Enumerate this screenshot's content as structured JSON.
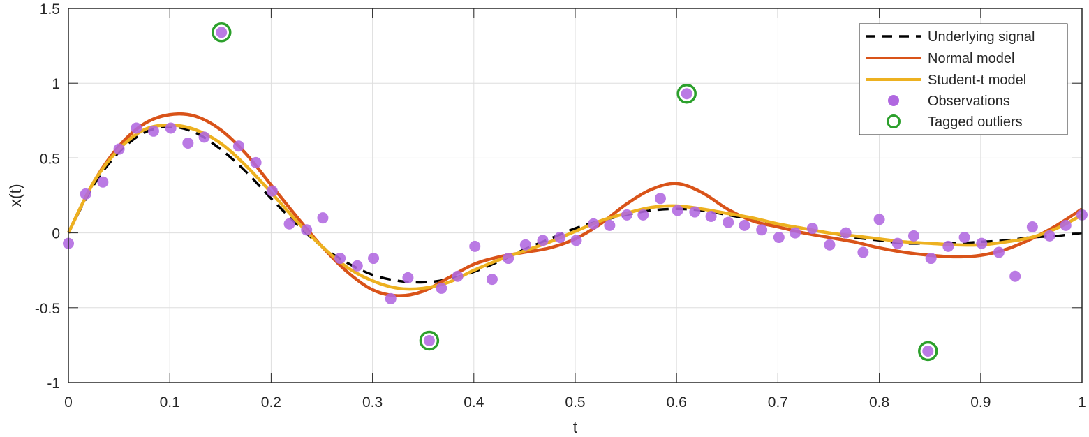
{
  "chart_data": {
    "type": "line",
    "title": "",
    "xlabel": "t",
    "ylabel": "x(t)",
    "xlim": [
      0,
      1
    ],
    "ylim": [
      -1,
      1.5
    ],
    "grid": true,
    "legend_position": "northeast",
    "xticks": [
      0,
      0.1,
      0.2,
      0.3,
      0.4,
      0.5,
      0.6,
      0.7,
      0.8,
      0.9,
      1
    ],
    "xtick_labels": [
      "0",
      "0.1",
      "0.2",
      "0.3",
      "0.4",
      "0.5",
      "0.6",
      "0.7",
      "0.8",
      "0.9",
      "1"
    ],
    "yticks": [
      -1,
      -0.5,
      0,
      0.5,
      1,
      1.5
    ],
    "ytick_labels": [
      "-1",
      "-0.5",
      "0",
      "0.5",
      "1",
      "1.5"
    ],
    "legend": [
      {
        "label": "Underlying signal",
        "style": "dashed-line",
        "color": "#000000"
      },
      {
        "label": "Normal model",
        "style": "line",
        "color": "#D95319"
      },
      {
        "label": "Student-t model",
        "style": "line",
        "color": "#EDB120"
      },
      {
        "label": "Observations",
        "style": "filled-circle",
        "color": "#B068E0"
      },
      {
        "label": "Tagged outliers",
        "style": "open-circle",
        "color": "#2CA02C"
      }
    ],
    "series": [
      {
        "name": "Underlying signal",
        "color": "#000000",
        "dash": true,
        "x": [
          0,
          0.025,
          0.05,
          0.075,
          0.1,
          0.125,
          0.15,
          0.175,
          0.2,
          0.225,
          0.25,
          0.275,
          0.3,
          0.325,
          0.35,
          0.375,
          0.4,
          0.425,
          0.45,
          0.475,
          0.5,
          0.525,
          0.55,
          0.575,
          0.6,
          0.625,
          0.65,
          0.675,
          0.7,
          0.725,
          0.75,
          0.775,
          0.8,
          0.825,
          0.85,
          0.875,
          0.9,
          0.925,
          0.95,
          0.975,
          1
        ],
        "y": [
          0,
          0.32,
          0.54,
          0.67,
          0.71,
          0.67,
          0.56,
          0.41,
          0.23,
          0.06,
          -0.09,
          -0.2,
          -0.28,
          -0.32,
          -0.33,
          -0.31,
          -0.26,
          -0.19,
          -0.11,
          -0.04,
          0.03,
          0.08,
          0.12,
          0.15,
          0.16,
          0.15,
          0.12,
          0.09,
          0.06,
          0.03,
          0.0,
          -0.03,
          -0.05,
          -0.07,
          -0.07,
          -0.07,
          -0.06,
          -0.05,
          -0.03,
          -0.02,
          0.0
        ]
      },
      {
        "name": "Normal model",
        "color": "#D95319",
        "x": [
          0,
          0.025,
          0.05,
          0.075,
          0.1,
          0.125,
          0.15,
          0.175,
          0.2,
          0.225,
          0.25,
          0.275,
          0.3,
          0.325,
          0.35,
          0.375,
          0.4,
          0.425,
          0.45,
          0.475,
          0.5,
          0.525,
          0.55,
          0.575,
          0.6,
          0.625,
          0.65,
          0.675,
          0.7,
          0.725,
          0.75,
          0.775,
          0.8,
          0.825,
          0.85,
          0.875,
          0.9,
          0.925,
          0.95,
          0.975,
          1
        ],
        "y": [
          0,
          0.34,
          0.58,
          0.73,
          0.79,
          0.78,
          0.69,
          0.53,
          0.32,
          0.11,
          -0.09,
          -0.26,
          -0.38,
          -0.42,
          -0.39,
          -0.3,
          -0.21,
          -0.16,
          -0.13,
          -0.1,
          -0.04,
          0.06,
          0.19,
          0.29,
          0.33,
          0.27,
          0.16,
          0.08,
          0.04,
          0.0,
          -0.03,
          -0.06,
          -0.1,
          -0.13,
          -0.15,
          -0.16,
          -0.15,
          -0.11,
          -0.04,
          0.05,
          0.16
        ]
      },
      {
        "name": "Student-t model",
        "color": "#EDB120",
        "x": [
          0,
          0.025,
          0.05,
          0.075,
          0.1,
          0.125,
          0.15,
          0.175,
          0.2,
          0.225,
          0.25,
          0.275,
          0.3,
          0.325,
          0.35,
          0.375,
          0.4,
          0.425,
          0.45,
          0.475,
          0.5,
          0.525,
          0.55,
          0.575,
          0.6,
          0.625,
          0.65,
          0.675,
          0.7,
          0.725,
          0.75,
          0.775,
          0.8,
          0.825,
          0.85,
          0.875,
          0.9,
          0.925,
          0.95,
          0.975,
          1
        ],
        "y": [
          0,
          0.34,
          0.56,
          0.69,
          0.72,
          0.69,
          0.6,
          0.45,
          0.27,
          0.08,
          -0.09,
          -0.23,
          -0.32,
          -0.37,
          -0.37,
          -0.33,
          -0.25,
          -0.18,
          -0.12,
          -0.06,
          0.01,
          0.08,
          0.13,
          0.17,
          0.18,
          0.16,
          0.13,
          0.1,
          0.06,
          0.03,
          0.0,
          -0.02,
          -0.04,
          -0.06,
          -0.07,
          -0.08,
          -0.08,
          -0.06,
          -0.03,
          0.03,
          0.12
        ]
      }
    ],
    "observations": {
      "name": "Observations",
      "color": "#B068E0",
      "points": [
        [
          0.0,
          -0.07
        ],
        [
          0.017,
          0.26
        ],
        [
          0.034,
          0.34
        ],
        [
          0.05,
          0.56
        ],
        [
          0.067,
          0.7
        ],
        [
          0.084,
          0.68
        ],
        [
          0.101,
          0.7
        ],
        [
          0.118,
          0.6
        ],
        [
          0.134,
          0.64
        ],
        [
          0.151,
          1.34
        ],
        [
          0.168,
          0.58
        ],
        [
          0.185,
          0.47
        ],
        [
          0.201,
          0.28
        ],
        [
          0.218,
          0.06
        ],
        [
          0.235,
          0.02
        ],
        [
          0.251,
          0.1
        ],
        [
          0.268,
          -0.17
        ],
        [
          0.285,
          -0.22
        ],
        [
          0.301,
          -0.17
        ],
        [
          0.318,
          -0.44
        ],
        [
          0.335,
          -0.3
        ],
        [
          0.356,
          -0.72
        ],
        [
          0.368,
          -0.37
        ],
        [
          0.384,
          -0.29
        ],
        [
          0.401,
          -0.09
        ],
        [
          0.418,
          -0.31
        ],
        [
          0.434,
          -0.17
        ],
        [
          0.451,
          -0.08
        ],
        [
          0.468,
          -0.05
        ],
        [
          0.485,
          -0.03
        ],
        [
          0.501,
          -0.05
        ],
        [
          0.518,
          0.06
        ],
        [
          0.534,
          0.05
        ],
        [
          0.551,
          0.12
        ],
        [
          0.567,
          0.12
        ],
        [
          0.584,
          0.23
        ],
        [
          0.601,
          0.15
        ],
        [
          0.61,
          0.93
        ],
        [
          0.618,
          0.14
        ],
        [
          0.634,
          0.11
        ],
        [
          0.651,
          0.07
        ],
        [
          0.667,
          0.05
        ],
        [
          0.684,
          0.02
        ],
        [
          0.701,
          -0.03
        ],
        [
          0.717,
          0.0
        ],
        [
          0.734,
          0.03
        ],
        [
          0.751,
          -0.08
        ],
        [
          0.767,
          0.0
        ],
        [
          0.784,
          -0.13
        ],
        [
          0.8,
          0.09
        ],
        [
          0.818,
          -0.07
        ],
        [
          0.834,
          -0.02
        ],
        [
          0.851,
          -0.17
        ],
        [
          0.848,
          -0.79
        ],
        [
          0.868,
          -0.09
        ],
        [
          0.884,
          -0.03
        ],
        [
          0.901,
          -0.07
        ],
        [
          0.918,
          -0.13
        ],
        [
          0.934,
          -0.29
        ],
        [
          0.951,
          0.04
        ],
        [
          0.968,
          -0.02
        ],
        [
          0.984,
          0.05
        ],
        [
          1.0,
          0.12
        ]
      ]
    },
    "outliers": {
      "name": "Tagged outliers",
      "color": "#2CA02C",
      "points": [
        [
          0.151,
          1.34
        ],
        [
          0.356,
          -0.72
        ],
        [
          0.61,
          0.93
        ],
        [
          0.848,
          -0.79
        ]
      ]
    }
  },
  "axes": {
    "xlabel": "t",
    "ylabel": "x(t)"
  },
  "legend": {
    "items": [
      {
        "label": "Underlying signal"
      },
      {
        "label": "Normal model"
      },
      {
        "label": "Student-t model"
      },
      {
        "label": "Observations"
      },
      {
        "label": "Tagged outliers"
      }
    ]
  }
}
